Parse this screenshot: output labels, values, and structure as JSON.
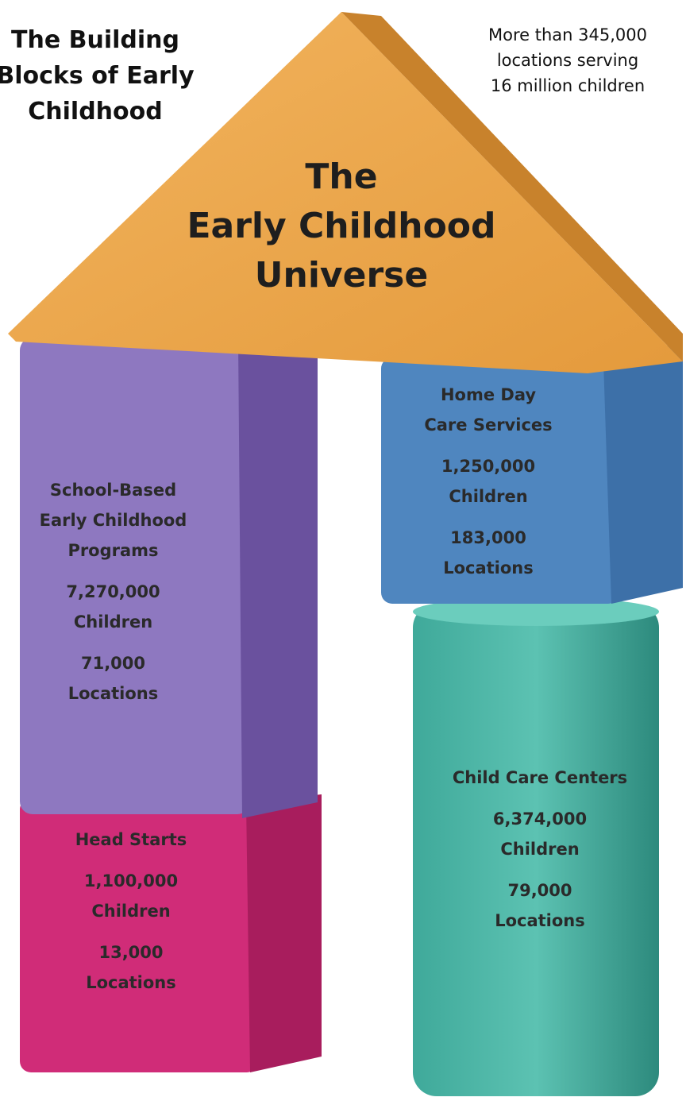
{
  "header": {
    "title": [
      "The Building",
      "Blocks of Early",
      "Childhood"
    ],
    "subtitle": [
      "More than 345,000",
      "locations serving",
      "16 million children"
    ]
  },
  "roof": {
    "label": [
      "The",
      "Early Childhood",
      "Universe"
    ]
  },
  "blocks": [
    {
      "name": [
        "School-Based",
        "Early Childhood",
        "Programs"
      ],
      "children": [
        "7,270,000",
        "Children"
      ],
      "locations": [
        "71,000",
        "Locations"
      ]
    },
    {
      "name": [
        "Head Starts"
      ],
      "children": [
        "1,100,000",
        "Children"
      ],
      "locations": [
        "13,000",
        "Locations"
      ]
    },
    {
      "name": [
        "Home Day",
        "Care Services"
      ],
      "children": [
        "1,250,000",
        "Children"
      ],
      "locations": [
        "183,000",
        "Locations"
      ]
    },
    {
      "name": [
        "Child Care Centers"
      ],
      "children": [
        "6,374,000",
        "Children"
      ],
      "locations": [
        "79,000",
        "Locations"
      ]
    }
  ]
}
